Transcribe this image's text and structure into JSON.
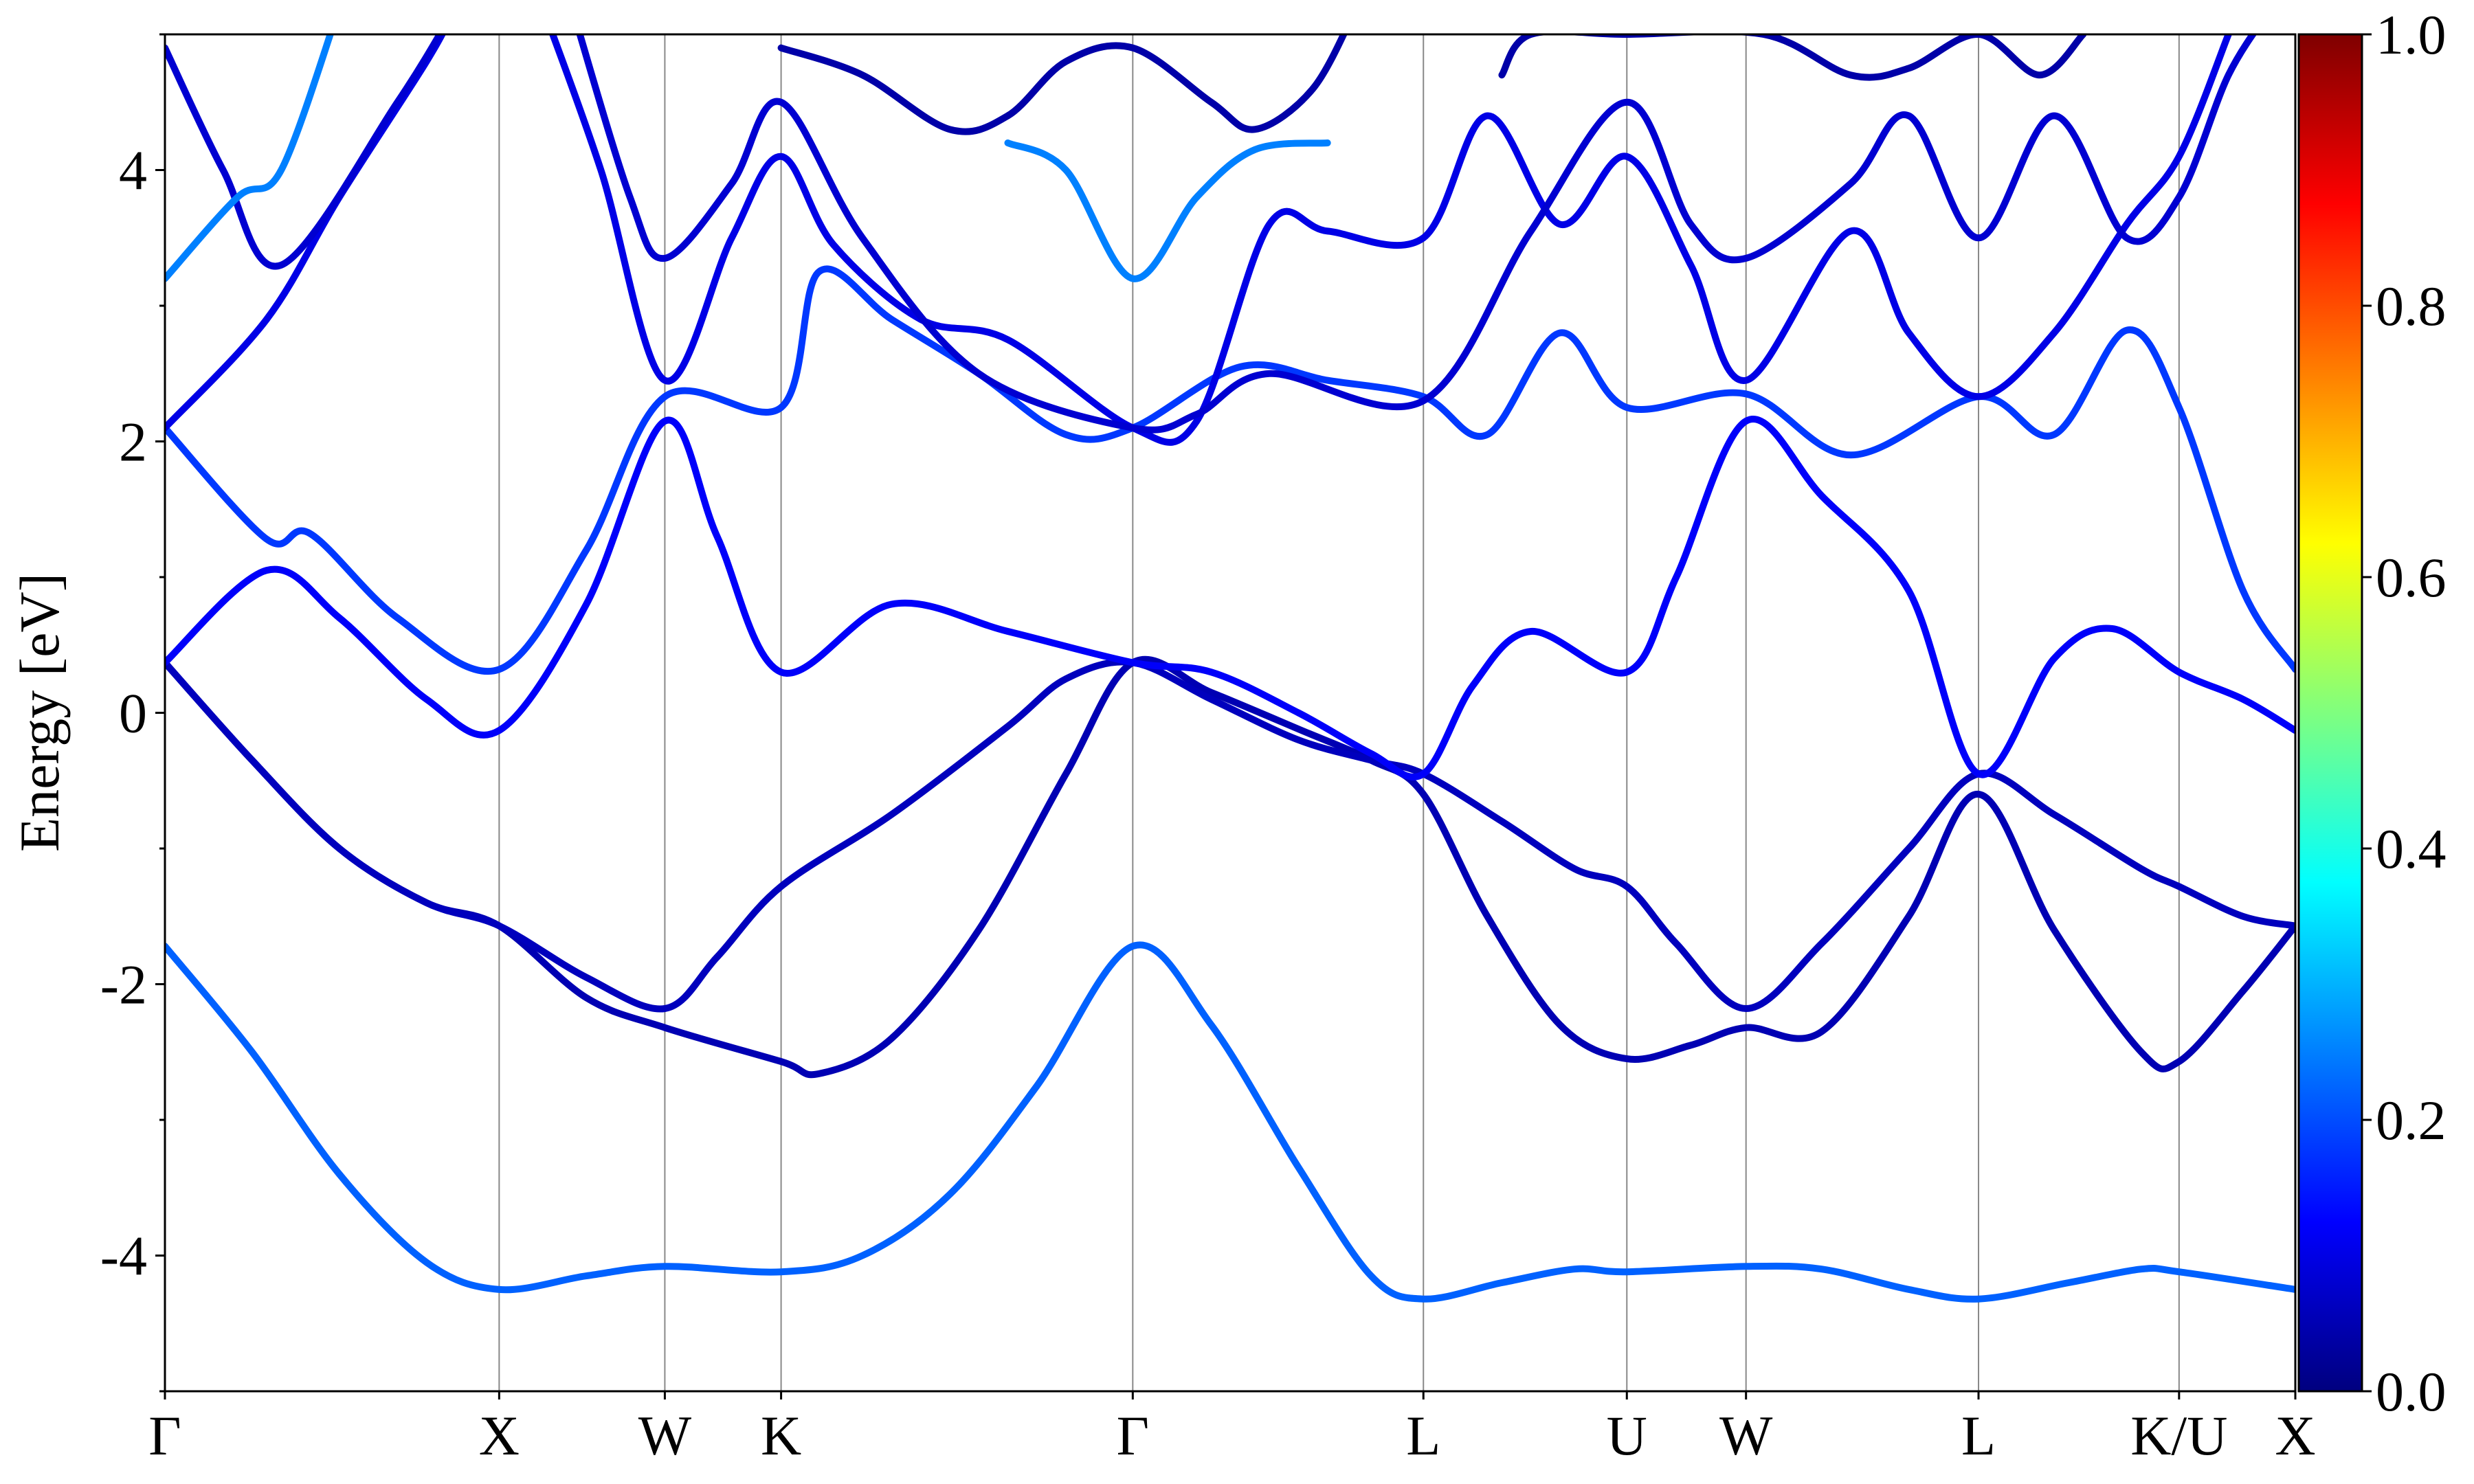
{
  "chart_data": {
    "type": "line",
    "title": "",
    "xlabel": "",
    "ylabel": "Energy [eV]",
    "ylim": [
      -5,
      5
    ],
    "xlim": [
      0,
      7.3
    ],
    "y_ticks": [
      -4,
      -2,
      0,
      2,
      4
    ],
    "y_tick_labels": [
      "-4",
      "-2",
      "0",
      "2",
      "4"
    ],
    "y_minor_step": 1,
    "k_points": [
      {
        "label": "Γ",
        "x": 0.0
      },
      {
        "label": "X",
        "x": 1.15
      },
      {
        "label": "W",
        "x": 1.72
      },
      {
        "label": "K",
        "x": 2.12
      },
      {
        "label": "Γ",
        "x": 3.33
      },
      {
        "label": "L",
        "x": 4.33
      },
      {
        "label": "U",
        "x": 5.03
      },
      {
        "label": "W",
        "x": 5.44
      },
      {
        "label": "L",
        "x": 6.24
      },
      {
        "label": "K/U",
        "x": 6.93
      },
      {
        "label": "X",
        "x": 7.33
      }
    ],
    "colorbar": {
      "range": [
        0.0,
        1.0
      ],
      "tick_labels": [
        "0.0",
        "0.2",
        "0.4",
        "0.6",
        "0.8",
        "1.0"
      ],
      "ticks": [
        0.0,
        0.2,
        0.4,
        0.6,
        0.8,
        1.0
      ],
      "colormap": "jet"
    },
    "series": [
      {
        "c": 0.22,
        "points": [
          [
            0,
            -1.72
          ],
          [
            0.3,
            -2.5
          ],
          [
            0.6,
            -3.4
          ],
          [
            0.9,
            -4.05
          ],
          [
            1.15,
            -4.25
          ],
          [
            1.45,
            -4.15
          ],
          [
            1.72,
            -4.08
          ],
          [
            2.12,
            -4.12
          ],
          [
            2.4,
            -4.0
          ],
          [
            2.7,
            -3.55
          ],
          [
            3.0,
            -2.75
          ],
          [
            3.33,
            -1.72
          ],
          [
            3.6,
            -2.3
          ],
          [
            3.9,
            -3.35
          ],
          [
            4.15,
            -4.15
          ],
          [
            4.33,
            -4.32
          ],
          [
            4.6,
            -4.2
          ],
          [
            4.85,
            -4.1
          ],
          [
            5.03,
            -4.12
          ],
          [
            5.44,
            -4.08
          ],
          [
            5.7,
            -4.1
          ],
          [
            6.0,
            -4.25
          ],
          [
            6.24,
            -4.32
          ],
          [
            6.55,
            -4.2
          ],
          [
            6.8,
            -4.1
          ],
          [
            6.93,
            -4.12
          ],
          [
            7.33,
            -4.25
          ]
        ]
      },
      {
        "c": 0.05,
        "points": [
          [
            0,
            0.37
          ],
          [
            0.3,
            -0.35
          ],
          [
            0.6,
            -1.0
          ],
          [
            0.9,
            -1.4
          ],
          [
            1.15,
            -1.57
          ],
          [
            1.45,
            -2.1
          ],
          [
            1.72,
            -2.32
          ],
          [
            2.12,
            -2.57
          ],
          [
            2.25,
            -2.66
          ],
          [
            2.5,
            -2.4
          ],
          [
            2.8,
            -1.6
          ],
          [
            3.1,
            -0.45
          ],
          [
            3.33,
            0.37
          ],
          [
            3.6,
            0.15
          ],
          [
            3.9,
            -0.12
          ],
          [
            4.15,
            -0.35
          ],
          [
            4.33,
            -0.6
          ],
          [
            4.55,
            -1.5
          ],
          [
            4.8,
            -2.3
          ],
          [
            5.03,
            -2.55
          ],
          [
            5.25,
            -2.45
          ],
          [
            5.44,
            -2.32
          ],
          [
            5.7,
            -2.35
          ],
          [
            6.0,
            -1.5
          ],
          [
            6.24,
            -0.6
          ],
          [
            6.5,
            -1.6
          ],
          [
            6.8,
            -2.5
          ],
          [
            6.93,
            -2.57
          ],
          [
            7.15,
            -2.05
          ],
          [
            7.33,
            -1.57
          ]
        ]
      },
      {
        "c": 0.06,
        "points": [
          [
            0,
            0.37
          ],
          [
            0.3,
            -0.35
          ],
          [
            0.6,
            -1.0
          ],
          [
            0.9,
            -1.4
          ],
          [
            1.15,
            -1.57
          ],
          [
            1.45,
            -1.95
          ],
          [
            1.72,
            -2.18
          ],
          [
            1.9,
            -1.8
          ],
          [
            2.12,
            -1.28
          ],
          [
            2.5,
            -0.75
          ],
          [
            2.9,
            -0.1
          ],
          [
            3.1,
            0.25
          ],
          [
            3.33,
            0.37
          ],
          [
            3.6,
            0.1
          ],
          [
            3.9,
            -0.2
          ],
          [
            4.15,
            -0.35
          ],
          [
            4.33,
            -0.45
          ],
          [
            4.6,
            -0.8
          ],
          [
            4.85,
            -1.15
          ],
          [
            5.03,
            -1.28
          ],
          [
            5.2,
            -1.7
          ],
          [
            5.44,
            -2.18
          ],
          [
            5.7,
            -1.7
          ],
          [
            6.0,
            -1.0
          ],
          [
            6.24,
            -0.45
          ],
          [
            6.5,
            -0.75
          ],
          [
            6.8,
            -1.15
          ],
          [
            6.93,
            -1.28
          ],
          [
            7.15,
            -1.5
          ],
          [
            7.33,
            -1.57
          ]
        ]
      },
      {
        "c": 0.12,
        "points": [
          [
            0,
            0.37
          ],
          [
            0.35,
            1.05
          ],
          [
            0.6,
            0.7
          ],
          [
            0.9,
            0.1
          ],
          [
            1.15,
            -0.13
          ],
          [
            1.45,
            0.8
          ],
          [
            1.72,
            2.15
          ],
          [
            1.9,
            1.3
          ],
          [
            2.12,
            0.3
          ],
          [
            2.5,
            0.8
          ],
          [
            2.9,
            0.6
          ],
          [
            3.33,
            0.37
          ],
          [
            3.6,
            0.3
          ],
          [
            3.9,
            0.0
          ],
          [
            4.15,
            -0.3
          ],
          [
            4.33,
            -0.45
          ],
          [
            4.5,
            0.2
          ],
          [
            4.7,
            0.6
          ],
          [
            5.03,
            0.3
          ],
          [
            5.2,
            1.0
          ],
          [
            5.44,
            2.15
          ],
          [
            5.7,
            1.6
          ],
          [
            6.0,
            0.9
          ],
          [
            6.24,
            -0.45
          ],
          [
            6.5,
            0.4
          ],
          [
            6.7,
            0.62
          ],
          [
            6.93,
            0.3
          ],
          [
            7.15,
            0.1
          ],
          [
            7.33,
            -0.13
          ]
        ]
      },
      {
        "c": 0.18,
        "points": [
          [
            0,
            2.1
          ],
          [
            0.35,
            1.28
          ],
          [
            0.5,
            1.32
          ],
          [
            0.8,
            0.7
          ],
          [
            1.15,
            0.32
          ],
          [
            1.45,
            1.2
          ],
          [
            1.72,
            2.33
          ],
          [
            2.12,
            2.25
          ],
          [
            2.25,
            3.25
          ],
          [
            2.5,
            2.9
          ],
          [
            2.8,
            2.5
          ],
          [
            3.1,
            2.05
          ],
          [
            3.33,
            2.1
          ],
          [
            3.7,
            2.55
          ],
          [
            4.0,
            2.45
          ],
          [
            4.33,
            2.33
          ],
          [
            4.55,
            2.05
          ],
          [
            4.8,
            2.8
          ],
          [
            5.03,
            2.25
          ],
          [
            5.44,
            2.35
          ],
          [
            5.8,
            1.9
          ],
          [
            6.24,
            2.33
          ],
          [
            6.5,
            2.05
          ],
          [
            6.75,
            2.82
          ],
          [
            6.93,
            2.25
          ],
          [
            7.15,
            0.9
          ],
          [
            7.33,
            0.32
          ]
        ]
      },
      {
        "c": 0.1,
        "points": [
          [
            0,
            2.1
          ],
          [
            0.35,
            2.9
          ],
          [
            0.6,
            3.8
          ],
          [
            0.9,
            4.8
          ],
          [
            1.0,
            5.2
          ]
        ]
      },
      {
        "c": 0.1,
        "points": [
          [
            1.3,
            5.2
          ],
          [
            1.5,
            4.0
          ],
          [
            1.72,
            2.45
          ],
          [
            1.95,
            3.5
          ],
          [
            2.12,
            4.1
          ],
          [
            2.3,
            3.45
          ],
          [
            2.6,
            2.9
          ],
          [
            2.9,
            2.75
          ],
          [
            3.33,
            2.1
          ],
          [
            3.55,
            2.15
          ],
          [
            3.8,
            3.6
          ],
          [
            4.0,
            3.55
          ],
          [
            4.33,
            3.5
          ],
          [
            4.55,
            4.4
          ],
          [
            4.8,
            3.6
          ],
          [
            5.03,
            4.1
          ],
          [
            5.25,
            3.3
          ],
          [
            5.44,
            2.45
          ],
          [
            5.8,
            3.55
          ],
          [
            6.0,
            2.8
          ],
          [
            6.24,
            2.33
          ],
          [
            6.5,
            2.8
          ],
          [
            6.75,
            3.6
          ],
          [
            6.93,
            4.1
          ],
          [
            7.1,
            5.0
          ]
        ]
      },
      {
        "c": 0.08,
        "points": [
          [
            0,
            4.9
          ],
          [
            0.2,
            4.0
          ],
          [
            0.4,
            3.3
          ],
          [
            0.8,
            4.5
          ],
          [
            1.0,
            5.2
          ]
        ]
      },
      {
        "c": 0.08,
        "points": [
          [
            1.4,
            5.2
          ],
          [
            1.6,
            3.8
          ],
          [
            1.72,
            3.35
          ],
          [
            1.95,
            3.9
          ],
          [
            2.12,
            4.5
          ],
          [
            2.4,
            3.5
          ],
          [
            2.8,
            2.5
          ],
          [
            3.33,
            2.1
          ],
          [
            3.55,
            2.2
          ],
          [
            3.8,
            2.5
          ],
          [
            4.33,
            2.3
          ],
          [
            4.7,
            3.55
          ],
          [
            5.03,
            4.5
          ],
          [
            5.25,
            3.6
          ],
          [
            5.44,
            3.35
          ],
          [
            5.8,
            3.9
          ],
          [
            6.0,
            4.4
          ],
          [
            6.24,
            3.5
          ],
          [
            6.5,
            4.4
          ],
          [
            6.75,
            3.5
          ],
          [
            6.93,
            3.8
          ],
          [
            7.1,
            4.7
          ],
          [
            7.25,
            5.2
          ]
        ]
      },
      {
        "c": 0.25,
        "points": [
          [
            0,
            3.2
          ],
          [
            0.25,
            3.8
          ],
          [
            0.4,
            4.0
          ],
          [
            0.6,
            5.2
          ]
        ]
      },
      {
        "c": 0.25,
        "points": [
          [
            2.9,
            4.2
          ],
          [
            3.1,
            4.0
          ],
          [
            3.33,
            3.2
          ],
          [
            3.55,
            3.8
          ],
          [
            3.75,
            4.15
          ],
          [
            4.0,
            4.2
          ]
        ]
      },
      {
        "c": 0.04,
        "points": [
          [
            2.12,
            4.9
          ],
          [
            2.4,
            4.7
          ],
          [
            2.7,
            4.3
          ],
          [
            2.9,
            4.4
          ],
          [
            3.1,
            4.8
          ],
          [
            3.33,
            4.9
          ],
          [
            3.6,
            4.5
          ],
          [
            3.75,
            4.3
          ],
          [
            3.95,
            4.6
          ],
          [
            4.1,
            5.2
          ]
        ]
      },
      {
        "c": 0.04,
        "points": [
          [
            4.6,
            4.7
          ],
          [
            4.7,
            5.0
          ],
          [
            5.03,
            5.0
          ],
          [
            5.5,
            5.0
          ],
          [
            5.8,
            4.7
          ],
          [
            6.0,
            4.75
          ],
          [
            6.24,
            5.0
          ],
          [
            6.45,
            4.7
          ],
          [
            6.6,
            5.0
          ]
        ]
      }
    ]
  }
}
